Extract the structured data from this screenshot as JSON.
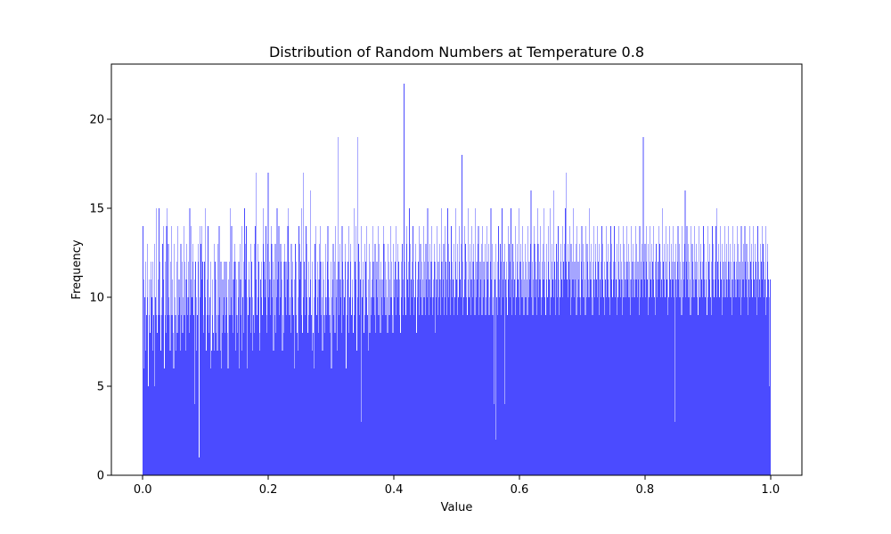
{
  "chart_data": {
    "type": "bar",
    "title": "Distribution of Random Numbers at Temperature 0.8",
    "xlabel": "Value",
    "ylabel": "Frequency",
    "xlim": [
      -0.05,
      1.05
    ],
    "ylim": [
      0,
      23.1
    ],
    "xticks": [
      0.0,
      0.2,
      0.4,
      0.6,
      0.8,
      1.0
    ],
    "xtick_labels": [
      "0.0",
      "0.2",
      "0.4",
      "0.6",
      "0.8",
      "1.0"
    ],
    "yticks": [
      0,
      5,
      10,
      15,
      20
    ],
    "ytick_labels": [
      "0",
      "5",
      "10",
      "15",
      "20"
    ],
    "bar_color": "#4b4bff",
    "grid": false,
    "legend": false,
    "bin_range": [
      0.0,
      1.0
    ],
    "series": [
      {
        "values": [
          14,
          11,
          6,
          10,
          7,
          12,
          9,
          13,
          10,
          5,
          11,
          9,
          8,
          12,
          11,
          10,
          7,
          12,
          9,
          13,
          5,
          10,
          9,
          15,
          8,
          9,
          11,
          15,
          9,
          12,
          7,
          10,
          9,
          13,
          11,
          14,
          6,
          9,
          12,
          8,
          14,
          15,
          9,
          13,
          10,
          9,
          7,
          12,
          14,
          9,
          11,
          8,
          6,
          13,
          10,
          9,
          7,
          12,
          8,
          14,
          9,
          11,
          10,
          7,
          13,
          9,
          12,
          8,
          10,
          14,
          9,
          12,
          7,
          11,
          13,
          9,
          10,
          12,
          8,
          15,
          9,
          11,
          14,
          10,
          12,
          13,
          9,
          4,
          11,
          12,
          7,
          10,
          9,
          13,
          12,
          1,
          10,
          14,
          13,
          11,
          14,
          12,
          9,
          8,
          12,
          10,
          15,
          7,
          9,
          11,
          14,
          8,
          9,
          10,
          6,
          12,
          7,
          11,
          9,
          8,
          7,
          13,
          12,
          11,
          8,
          9,
          7,
          13,
          9,
          14,
          10,
          7,
          12,
          6,
          8,
          11,
          9,
          10,
          12,
          8,
          9,
          12,
          10,
          8,
          6,
          11,
          12,
          9,
          15,
          10,
          14,
          9,
          8,
          11,
          12,
          13,
          12,
          7,
          11,
          9,
          8,
          10,
          12,
          6,
          13,
          11,
          9,
          7,
          14,
          10,
          8,
          12,
          15,
          11,
          13,
          14,
          10,
          6,
          9,
          12,
          11,
          10,
          13,
          8,
          12,
          7,
          10,
          9,
          13,
          8,
          14,
          17,
          11,
          9,
          13,
          10,
          12,
          8,
          7,
          11,
          12,
          10,
          9,
          13,
          15,
          12,
          10,
          11,
          14,
          9,
          8,
          13,
          17,
          10,
          12,
          11,
          9,
          14,
          13,
          10,
          12,
          7,
          11,
          9,
          13,
          8,
          10,
          15,
          11,
          12,
          14,
          9,
          10,
          13,
          12,
          11,
          7,
          9,
          8,
          12,
          13,
          10,
          12,
          9,
          11,
          14,
          15,
          12,
          9,
          10,
          8,
          13,
          11,
          12,
          10,
          9,
          6,
          11,
          13,
          9,
          12,
          8,
          7,
          10,
          14,
          11,
          13,
          12,
          9,
          15,
          8,
          10,
          17,
          12,
          9,
          11,
          14,
          10,
          13,
          8,
          12,
          9,
          10,
          16,
          11,
          9,
          7,
          12,
          8,
          10,
          6,
          13,
          11,
          14,
          9,
          12,
          10,
          8,
          11,
          13,
          14,
          12,
          9,
          10,
          7,
          12,
          11,
          9,
          8,
          13,
          10,
          9,
          12,
          14,
          11,
          10,
          9,
          8,
          12,
          6,
          10,
          11,
          13,
          9,
          12,
          8,
          14,
          10,
          11,
          7,
          19,
          12,
          9,
          13,
          11,
          10,
          8,
          14,
          12,
          9,
          11,
          10,
          12,
          13,
          6,
          9,
          11,
          12,
          8,
          14,
          10,
          12,
          13,
          9,
          11,
          10,
          8,
          15,
          9,
          12,
          11,
          14,
          7,
          10,
          19,
          13,
          12,
          9,
          11,
          14,
          3,
          10,
          12,
          11,
          8,
          13,
          9,
          12,
          14,
          10,
          9,
          11,
          7,
          13,
          8,
          12,
          9,
          10,
          11,
          14,
          12,
          10,
          9,
          13,
          8,
          11,
          12,
          10,
          14,
          9,
          13,
          11,
          8,
          12,
          10,
          11,
          9,
          14,
          13,
          10,
          12,
          9,
          11,
          10,
          8,
          13,
          12,
          9,
          11,
          14,
          10,
          12,
          9,
          8,
          13,
          11,
          10,
          12,
          9,
          14,
          11,
          10,
          13,
          12,
          9,
          11,
          8,
          10,
          12,
          13,
          9,
          11,
          22,
          10,
          12,
          9,
          13,
          14,
          11,
          10,
          12,
          15,
          9,
          13,
          11,
          10,
          12,
          14,
          9,
          11,
          10,
          13,
          12,
          8,
          11,
          10,
          12,
          9,
          14,
          11,
          13,
          10,
          12,
          9,
          11,
          14,
          10,
          12,
          9,
          13,
          11,
          10,
          15,
          12,
          9,
          11,
          13,
          10,
          12,
          14,
          9,
          10,
          11,
          13,
          12,
          8,
          10,
          11,
          14,
          9,
          12,
          10,
          13,
          11,
          9,
          15,
          12,
          10,
          11,
          13,
          9,
          14,
          10,
          12,
          11,
          9,
          15,
          13,
          10,
          12,
          11,
          9,
          14,
          10,
          12,
          11,
          13,
          9,
          10,
          15,
          12,
          11,
          13,
          9,
          10,
          14,
          12,
          11,
          10,
          13,
          18,
          9,
          12,
          10,
          11,
          14,
          13,
          10,
          12,
          9,
          11,
          15,
          10,
          13,
          12,
          9,
          11,
          14,
          10,
          12,
          13,
          11,
          9,
          15,
          10,
          12,
          11,
          13,
          14,
          9,
          10,
          12,
          11,
          13,
          9,
          14,
          10,
          12,
          11,
          13,
          9,
          10,
          14,
          12,
          11,
          13,
          9,
          10,
          12,
          15,
          11,
          13,
          9,
          10,
          4,
          12,
          11,
          2,
          13,
          10,
          12,
          9,
          14,
          11,
          10,
          13,
          12,
          9,
          15,
          11,
          10,
          12,
          13,
          4,
          11,
          10,
          12,
          9,
          14,
          11,
          13,
          10,
          12,
          15,
          11,
          9,
          13,
          10,
          12,
          11,
          14,
          9,
          10,
          13,
          12,
          11,
          15,
          10,
          9,
          12,
          13,
          11,
          10,
          14,
          12,
          9,
          11,
          13,
          10,
          12,
          11,
          9,
          14,
          10,
          12,
          11,
          13,
          16,
          10,
          12,
          9,
          11,
          14,
          13,
          10,
          12,
          11,
          9,
          15,
          13,
          10,
          12,
          11,
          14,
          9,
          10,
          12,
          13,
          11,
          15,
          10,
          12,
          9,
          11,
          13,
          10,
          14,
          12,
          11,
          9,
          15,
          10,
          12,
          13,
          11,
          10,
          16,
          12,
          9,
          11,
          13,
          10,
          12,
          14,
          11,
          9,
          10,
          13,
          12,
          11,
          14,
          10,
          12,
          13,
          11,
          15,
          17,
          12,
          11,
          13,
          10,
          12,
          14,
          11,
          9,
          13,
          10,
          12,
          11,
          15,
          10,
          12,
          11,
          13,
          9,
          14,
          10,
          12,
          11,
          13,
          10,
          9,
          12,
          14,
          11,
          13,
          10,
          12,
          11,
          9,
          14,
          10,
          13,
          12,
          11,
          10,
          15,
          12,
          11,
          13,
          10,
          9,
          12,
          14,
          11,
          10,
          13,
          12,
          11,
          14,
          10,
          12,
          9,
          13,
          11,
          10,
          12,
          14,
          11,
          13,
          10,
          12,
          9,
          11,
          14,
          10,
          12,
          13,
          11,
          10,
          12,
          9,
          14,
          11,
          13,
          10,
          12,
          11,
          14,
          10,
          12,
          11,
          13,
          9,
          10,
          12,
          14,
          11,
          13,
          10,
          12,
          11,
          9,
          14,
          10,
          13,
          12,
          11,
          10,
          14,
          12,
          11,
          13,
          10,
          12,
          9,
          11,
          14,
          10,
          12,
          13,
          11,
          10,
          12,
          14,
          11,
          13,
          10,
          12,
          11,
          9,
          14,
          10,
          12,
          11,
          13,
          10,
          19,
          12,
          11,
          13,
          10,
          14,
          12,
          11,
          9,
          13,
          10,
          12,
          14,
          11,
          10,
          13,
          12,
          11,
          14,
          10,
          12,
          9,
          13,
          11,
          10,
          12,
          14,
          11,
          13,
          10,
          12,
          11,
          15,
          10,
          12,
          11,
          13,
          10,
          14,
          12,
          11,
          9,
          13,
          10,
          12,
          14,
          11,
          10,
          13,
          12,
          11,
          14,
          10,
          12,
          3,
          13,
          11,
          10,
          12,
          14,
          11,
          13,
          10,
          12,
          11,
          9,
          14,
          10,
          12,
          11,
          13,
          16,
          10,
          12,
          14,
          11,
          13,
          10,
          12,
          11,
          9,
          14,
          10,
          13,
          12,
          11,
          10,
          14,
          12,
          11,
          13,
          10,
          12,
          9,
          11,
          14,
          10,
          12,
          13,
          11,
          10,
          12,
          14,
          11,
          13,
          10,
          12,
          11,
          9,
          14,
          10,
          12,
          11,
          13,
          10,
          9,
          12,
          14,
          11,
          13,
          10,
          12,
          11,
          14,
          10,
          15,
          12,
          11,
          13,
          10,
          12,
          14,
          11,
          9,
          13,
          10,
          12,
          11,
          14,
          10,
          12,
          13,
          11,
          10,
          14,
          12,
          11,
          13,
          10,
          12,
          9,
          11,
          14,
          10,
          12,
          13,
          11,
          10,
          12,
          14,
          11,
          13,
          10,
          12,
          11,
          9,
          14,
          10,
          12,
          11,
          13,
          10,
          14,
          12,
          11,
          13,
          10,
          12,
          9,
          11,
          14,
          10,
          12,
          13,
          11,
          10,
          12,
          14,
          11,
          13,
          10,
          12,
          11,
          9,
          14,
          10,
          12,
          11,
          13,
          10,
          12,
          14,
          11,
          13,
          10,
          12,
          11,
          9,
          14,
          10,
          13,
          12,
          11,
          10,
          5,
          11
        ]
      }
    ]
  }
}
